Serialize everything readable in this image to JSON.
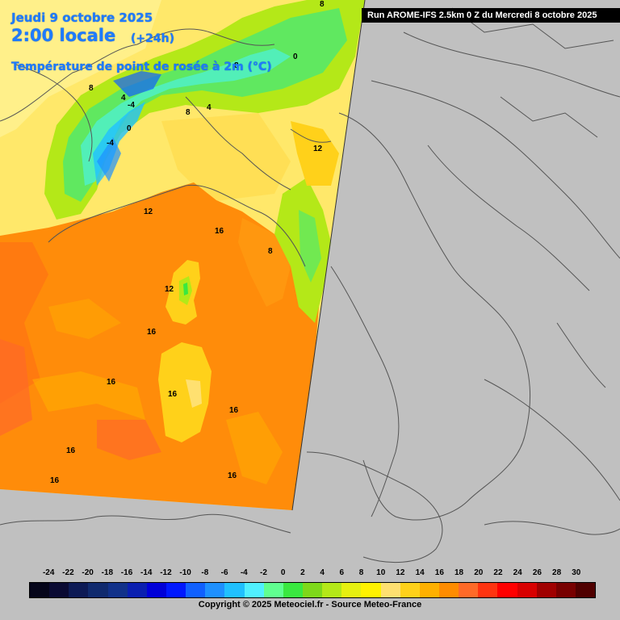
{
  "header": {
    "date": "Jeudi 9 octobre 2025",
    "time": "2:00 locale",
    "offset": "(+24h)",
    "parameter": "Température de point de rosée à 2m (°C)"
  },
  "run_banner": "Run AROME-IFS 2.5km 0 Z du Mercredi 8 octobre 2025",
  "map": {
    "no_data_color": "#c0c0c0",
    "border_color": "#555555",
    "contour_labels": [
      {
        "text": "8"
      },
      {
        "text": "0"
      },
      {
        "text": "8"
      },
      {
        "text": "4"
      },
      {
        "text": "-4"
      },
      {
        "text": "0"
      },
      {
        "text": "-4"
      },
      {
        "text": "8"
      },
      {
        "text": "4"
      },
      {
        "text": "12"
      },
      {
        "text": "12"
      },
      {
        "text": "16"
      },
      {
        "text": "8"
      },
      {
        "text": "12"
      },
      {
        "text": "16"
      },
      {
        "text": "16"
      },
      {
        "text": "16"
      },
      {
        "text": "16"
      },
      {
        "text": "16"
      },
      {
        "text": "16"
      },
      {
        "text": "16"
      },
      {
        "text": "8"
      }
    ]
  },
  "legend": {
    "ticks": [
      "-24",
      "-22",
      "-20",
      "-18",
      "-16",
      "-14",
      "-12",
      "-10",
      "-8",
      "-6",
      "-4",
      "-2",
      "0",
      "2",
      "4",
      "6",
      "8",
      "10",
      "12",
      "14",
      "16",
      "18",
      "20",
      "22",
      "24",
      "26",
      "28",
      "30"
    ],
    "colors": [
      "#05051a",
      "#0a0a33",
      "#0d1a55",
      "#102a6e",
      "#11318a",
      "#0a1fb0",
      "#0000d8",
      "#0018ff",
      "#1060ff",
      "#1e90ff",
      "#20c0ff",
      "#50f0ff",
      "#60ff90",
      "#3ae840",
      "#7ed81a",
      "#b4e818",
      "#e6f010",
      "#fff200",
      "#ffe070",
      "#ffd11a",
      "#ffb000",
      "#ff8c00",
      "#ff6a28",
      "#ff3410",
      "#ff0000",
      "#d80000",
      "#a00000",
      "#780000",
      "#500000"
    ]
  },
  "copyright": "Copyright © 2025 Meteociel.fr - Source Meteo-France"
}
